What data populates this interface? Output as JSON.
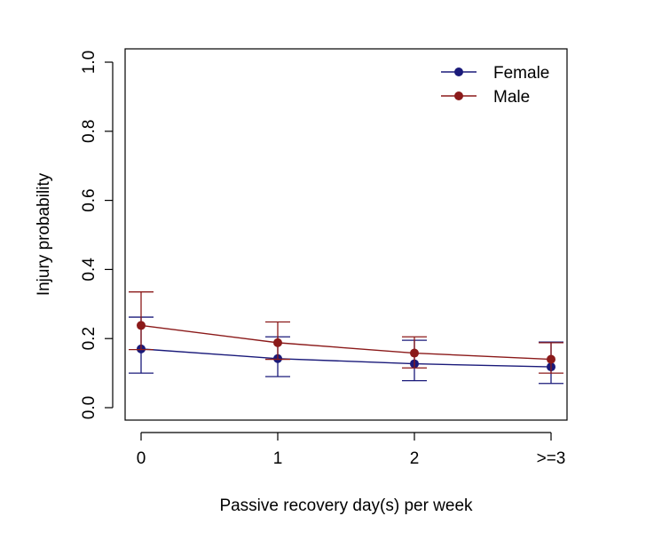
{
  "chart_data": {
    "type": "line",
    "title": "",
    "xlabel": "Passive recovery day(s) per week",
    "ylabel": "Injury probability",
    "categories": [
      "0",
      "1",
      "2",
      ">=3"
    ],
    "ylim": [
      0,
      1
    ],
    "yticks": [
      "0.0",
      "0.2",
      "0.4",
      "0.6",
      "0.8",
      "1.0"
    ],
    "grid": false,
    "legend_position": "top-right",
    "series": [
      {
        "name": "Female",
        "color": "#1a1a7a",
        "values": [
          0.17,
          0.142,
          0.127,
          0.118
        ],
        "lower": [
          0.1,
          0.09,
          0.078,
          0.07
        ],
        "upper": [
          0.262,
          0.205,
          0.195,
          0.19
        ]
      },
      {
        "name": "Male",
        "color": "#8b1a1a",
        "values": [
          0.238,
          0.188,
          0.158,
          0.14
        ],
        "lower": [
          0.168,
          0.14,
          0.115,
          0.1
        ],
        "upper": [
          0.335,
          0.248,
          0.205,
          0.188
        ]
      }
    ]
  }
}
